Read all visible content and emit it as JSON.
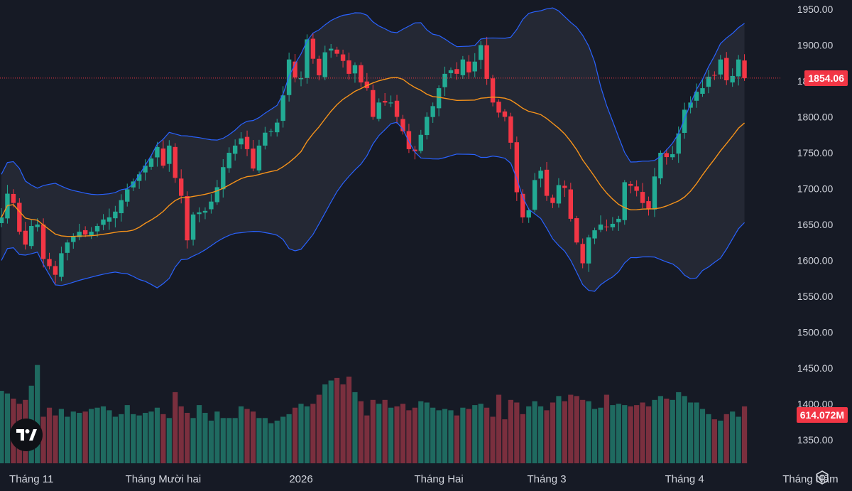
{
  "colors": {
    "background": "#161a25",
    "up": "#22ab94",
    "down": "#f23645",
    "volume_up": "#1f6a60",
    "volume_down": "#7a2f3e",
    "basis": "#f7931a",
    "band": "#2962ff",
    "band_fill": "#2a2e39",
    "axis_text": "#d1d4dc",
    "price_line": "#f23645"
  },
  "price_label": "1854.06",
  "volume_label": "614.072M",
  "logo_text": "TV",
  "settings_icon": "gear-icon",
  "chart_data": {
    "type": "candlestick",
    "title": "",
    "price_axis": {
      "range": [
        1310,
        1965
      ],
      "ticks": [
        "1950.00",
        "1900.00",
        "1850.00",
        "1800.00",
        "1750.00",
        "1700.00",
        "1650.00",
        "1600.00",
        "1550.00",
        "1500.00",
        "1450.00",
        "1400.00",
        "1350.00"
      ]
    },
    "time_axis": {
      "labels": [
        {
          "text": "Tháng 11",
          "bar": 5
        },
        {
          "text": "Tháng Mười hai",
          "bar": 27
        },
        {
          "text": "2026",
          "bar": 50
        },
        {
          "text": "Tháng Hai",
          "bar": 73
        },
        {
          "text": "Tháng 3",
          "bar": 91
        },
        {
          "text": "Tháng 4",
          "bar": 114
        },
        {
          "text": "Tháng Năm",
          "bar": 135
        }
      ]
    },
    "last_price": 1854.06,
    "last_volume": "614.072M",
    "grid": false,
    "closes": [
      1660,
      1693,
      1680,
      1640,
      1622,
      1648,
      1650,
      1602,
      1592,
      1580,
      1610,
      1625,
      1633,
      1640,
      1636,
      1640,
      1648,
      1657,
      1660,
      1668,
      1684,
      1699,
      1710,
      1720,
      1732,
      1742,
      1758,
      1732,
      1760,
      1715,
      1690,
      1628,
      1664,
      1667,
      1669,
      1682,
      1702,
      1730,
      1750,
      1760,
      1770,
      1755,
      1728,
      1760,
      1778,
      1780,
      1792,
      1830,
      1880,
      1855,
      1854,
      1908,
      1881,
      1858,
      1890,
      1895,
      1888,
      1878,
      1860,
      1872,
      1848,
      1840,
      1800,
      1820,
      1820,
      1820,
      1800,
      1780,
      1755,
      1752,
      1775,
      1800,
      1815,
      1840,
      1860,
      1865,
      1860,
      1880,
      1862,
      1877,
      1900,
      1853,
      1820,
      1806,
      1800,
      1764,
      1695,
      1660,
      1670,
      1712,
      1725,
      1690,
      1680,
      1705,
      1701,
      1658,
      1625,
      1596,
      1632,
      1642,
      1650,
      1647,
      1651,
      1658,
      1709,
      1704,
      1697,
      1680,
      1672,
      1717,
      1750,
      1744,
      1748,
      1777,
      1810,
      1820,
      1835,
      1840,
      1856,
      1858,
      1880,
      1851,
      1857,
      1880,
      1854
    ],
    "ma_period": 20,
    "band_stddev": 2,
    "volume": {
      "ylim": [
        0,
        1
      ],
      "values": [
        0.56,
        0.54,
        0.5,
        0.46,
        0.49,
        0.6,
        0.76,
        0.36,
        0.43,
        0.37,
        0.42,
        0.36,
        0.4,
        0.39,
        0.4,
        0.42,
        0.43,
        0.44,
        0.41,
        0.36,
        0.38,
        0.45,
        0.38,
        0.37,
        0.39,
        0.4,
        0.43,
        0.38,
        0.35,
        0.55,
        0.44,
        0.39,
        0.35,
        0.45,
        0.39,
        0.33,
        0.4,
        0.35,
        0.35,
        0.35,
        0.44,
        0.42,
        0.4,
        0.35,
        0.35,
        0.31,
        0.33,
        0.36,
        0.38,
        0.43,
        0.46,
        0.44,
        0.46,
        0.53,
        0.61,
        0.64,
        0.66,
        0.61,
        0.67,
        0.55,
        0.48,
        0.37,
        0.49,
        0.46,
        0.49,
        0.43,
        0.44,
        0.46,
        0.41,
        0.43,
        0.48,
        0.47,
        0.43,
        0.41,
        0.42,
        0.41,
        0.37,
        0.43,
        0.42,
        0.45,
        0.46,
        0.43,
        0.36,
        0.53,
        0.34,
        0.49,
        0.47,
        0.38,
        0.44,
        0.48,
        0.44,
        0.41,
        0.47,
        0.52,
        0.48,
        0.53,
        0.52,
        0.49,
        0.48,
        0.42,
        0.43,
        0.53,
        0.45,
        0.46,
        0.45,
        0.44,
        0.45,
        0.47,
        0.44,
        0.49,
        0.52,
        0.5,
        0.49,
        0.55,
        0.52,
        0.47,
        0.47,
        0.42,
        0.38,
        0.34,
        0.33,
        0.38,
        0.4,
        0.36,
        0.44
      ]
    }
  }
}
